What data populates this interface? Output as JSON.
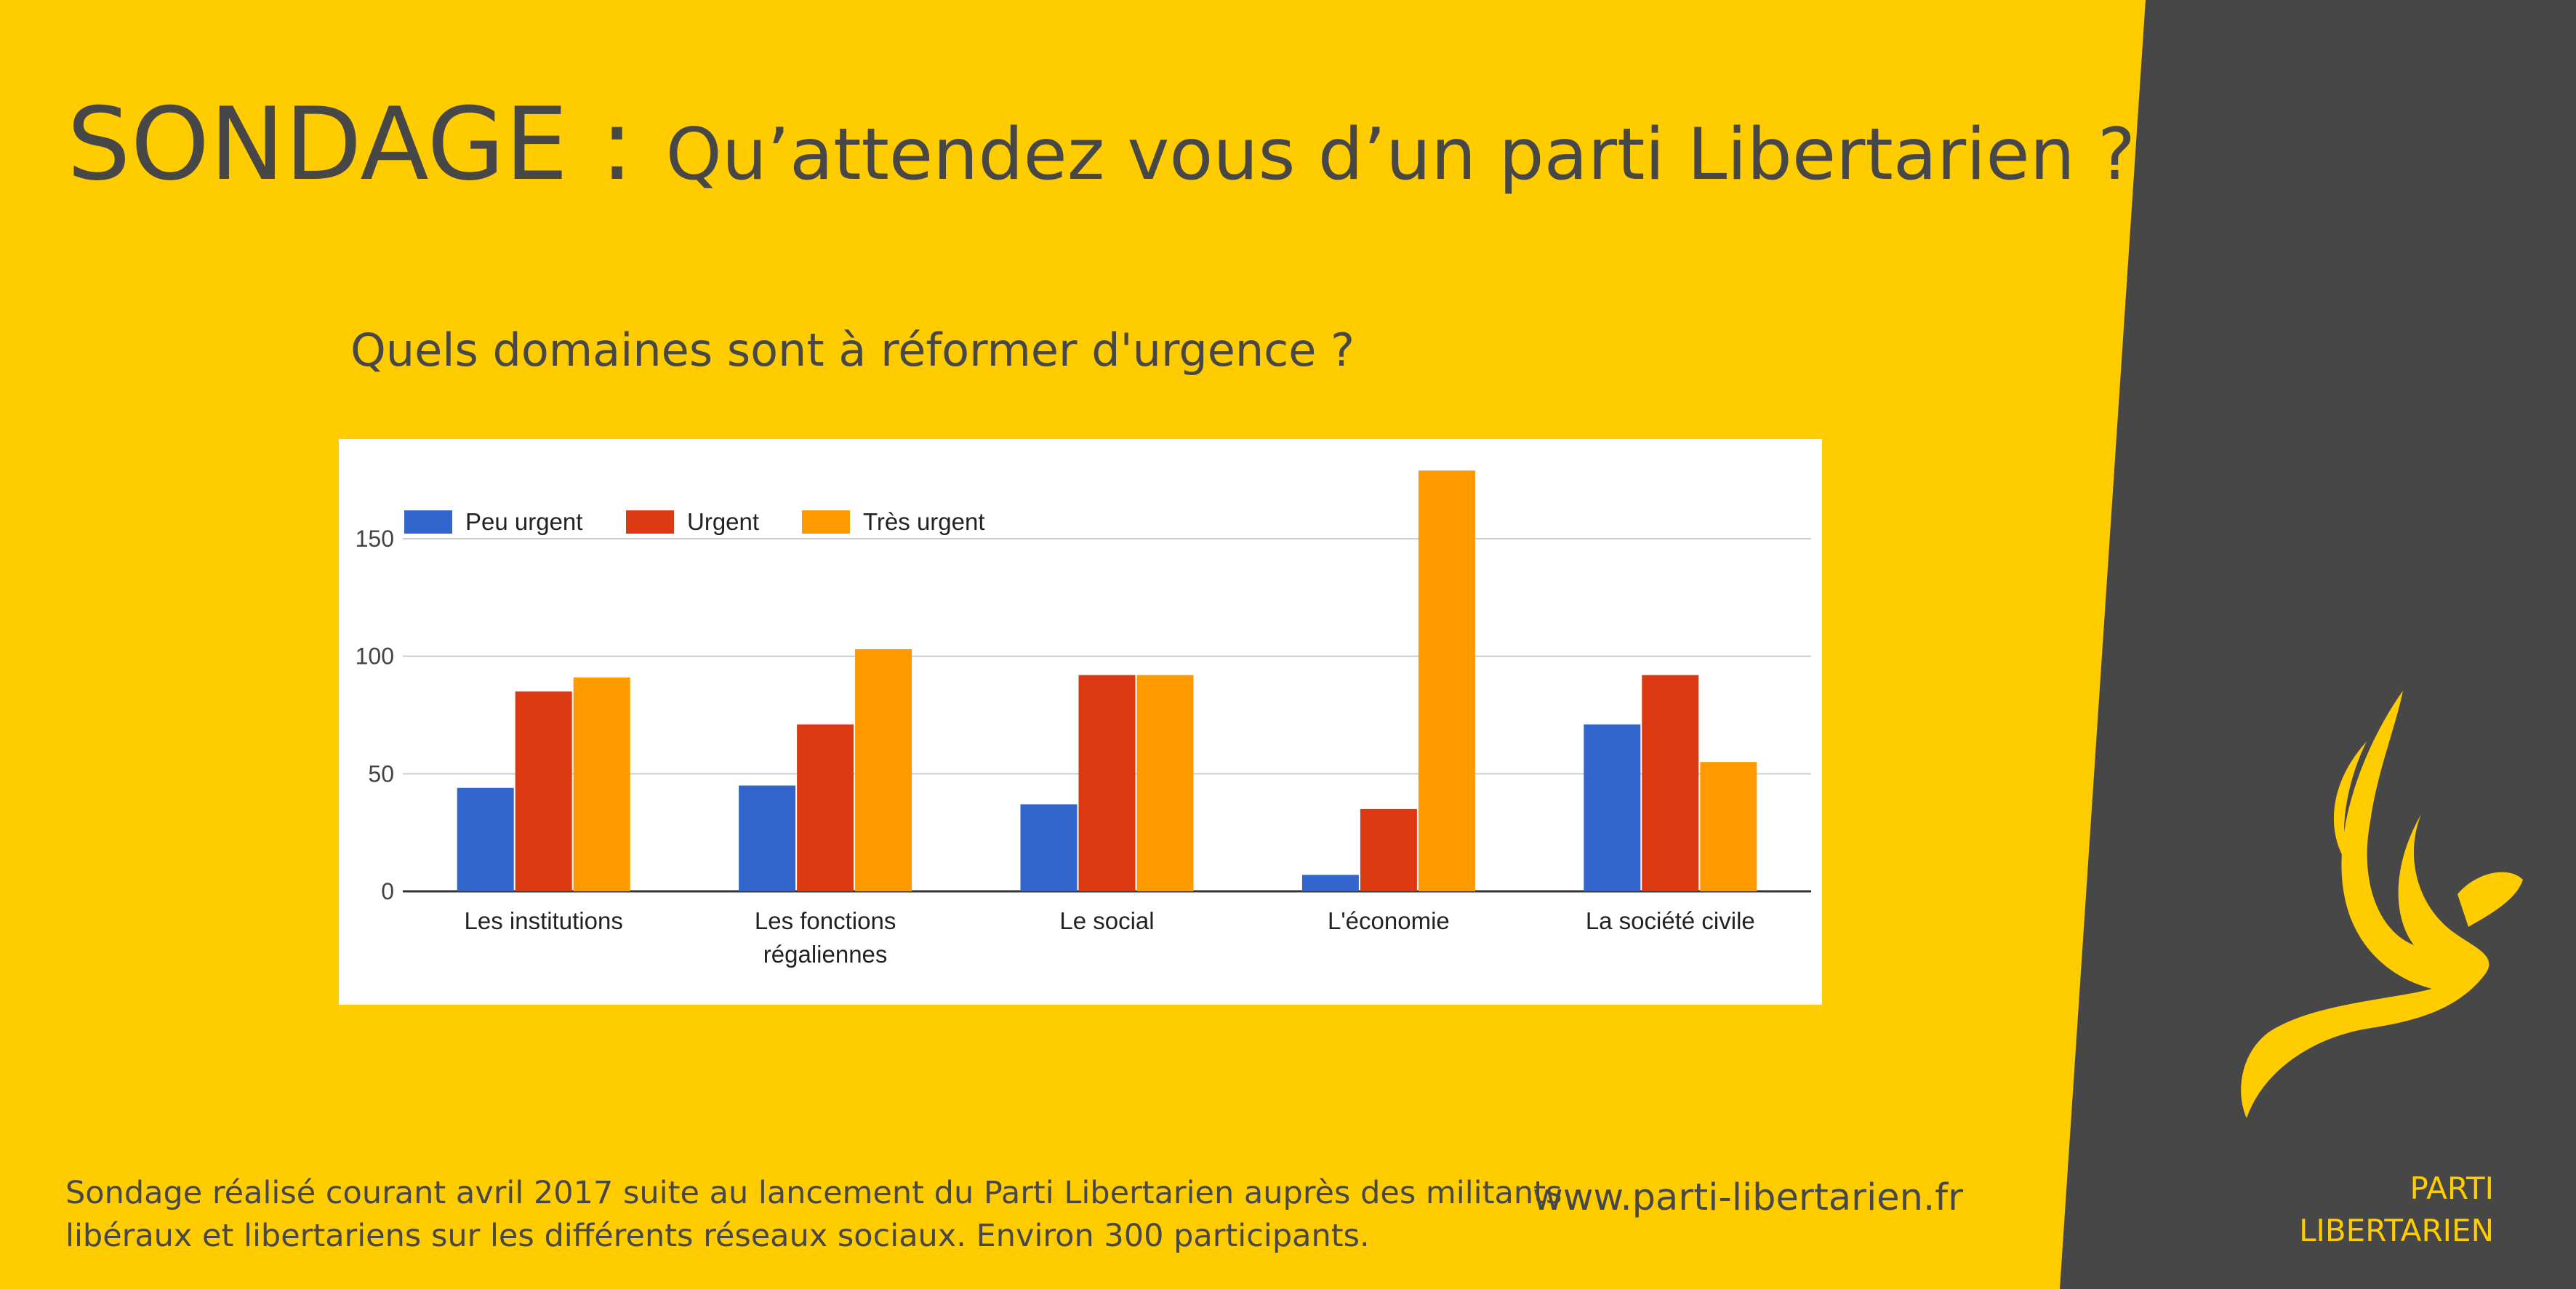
{
  "header": {
    "title_main": "SONDAGE : ",
    "title_question": "Qu’attendez vous d’un parti Libertarien ?"
  },
  "chart_heading": "Quels domaines sont à réformer d'urgence ?",
  "chart_data": {
    "type": "bar",
    "categories": [
      [
        "Les institutions"
      ],
      [
        "Les fonctions",
        "régaliennes"
      ],
      [
        "Le social"
      ],
      [
        "L'économie"
      ],
      [
        "La société civile"
      ]
    ],
    "series": [
      {
        "name": "Peu urgent",
        "color": "#3366CC",
        "values": [
          44,
          45,
          37,
          7,
          71
        ]
      },
      {
        "name": "Urgent",
        "color": "#DC3912",
        "values": [
          85,
          71,
          92,
          35,
          92
        ]
      },
      {
        "name": "Très urgent",
        "color": "#FF9900",
        "values": [
          91,
          103,
          92,
          179,
          55
        ]
      }
    ],
    "ylim": [
      0,
      180
    ],
    "yticks": [
      0,
      50,
      100,
      150
    ],
    "grid": true,
    "legend": "top-left"
  },
  "footer": {
    "note_line1": "Sondage réalisé courant avril 2017 suite au lancement du Parti Libertarien auprès des militants",
    "note_line2": "libéraux et libertariens sur les différents réseaux sociaux. Environ 300 participants.",
    "website": "www.parti-libertarien.fr"
  },
  "brand": {
    "line1": "PARTI",
    "line2": "LIBERTARIEN",
    "logo": "bird-logo"
  },
  "colors": {
    "background": "#FFCC00",
    "panel": "#474747",
    "text": "#474747"
  }
}
